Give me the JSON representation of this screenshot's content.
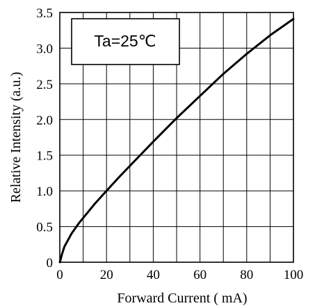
{
  "chart_data": {
    "type": "line",
    "xlabel": "Forward Current ( mA)",
    "ylabel": "Relative Intensity  (a.u.)",
    "xlim": [
      0,
      100
    ],
    "ylim": [
      0,
      3.5
    ],
    "x_ticks": [
      0,
      20,
      40,
      60,
      80,
      100
    ],
    "x_tick_labels": [
      "0",
      "20",
      "40",
      "60",
      "80",
      "100"
    ],
    "y_ticks": [
      0,
      0.5,
      1.0,
      1.5,
      2.0,
      2.5,
      3.0,
      3.5
    ],
    "y_tick_labels": [
      "0",
      "0.5",
      "1.0",
      "1.5",
      "2.0",
      "2.5",
      "3.0",
      "3.5"
    ],
    "grid": true,
    "x_gridlines": [
      0,
      10,
      20,
      30,
      40,
      50,
      60,
      70,
      80,
      90,
      100
    ],
    "annotation": "Ta=25℃",
    "series": [
      {
        "x": [
          0.2,
          1,
          2,
          5,
          8,
          10,
          15,
          20,
          25,
          30,
          40,
          50,
          60,
          70,
          80,
          90,
          100
        ],
        "values": [
          0.02,
          0.12,
          0.22,
          0.4,
          0.54,
          0.62,
          0.82,
          1.0,
          1.18,
          1.35,
          1.69,
          2.02,
          2.33,
          2.64,
          2.92,
          3.18,
          3.41
        ]
      }
    ]
  }
}
